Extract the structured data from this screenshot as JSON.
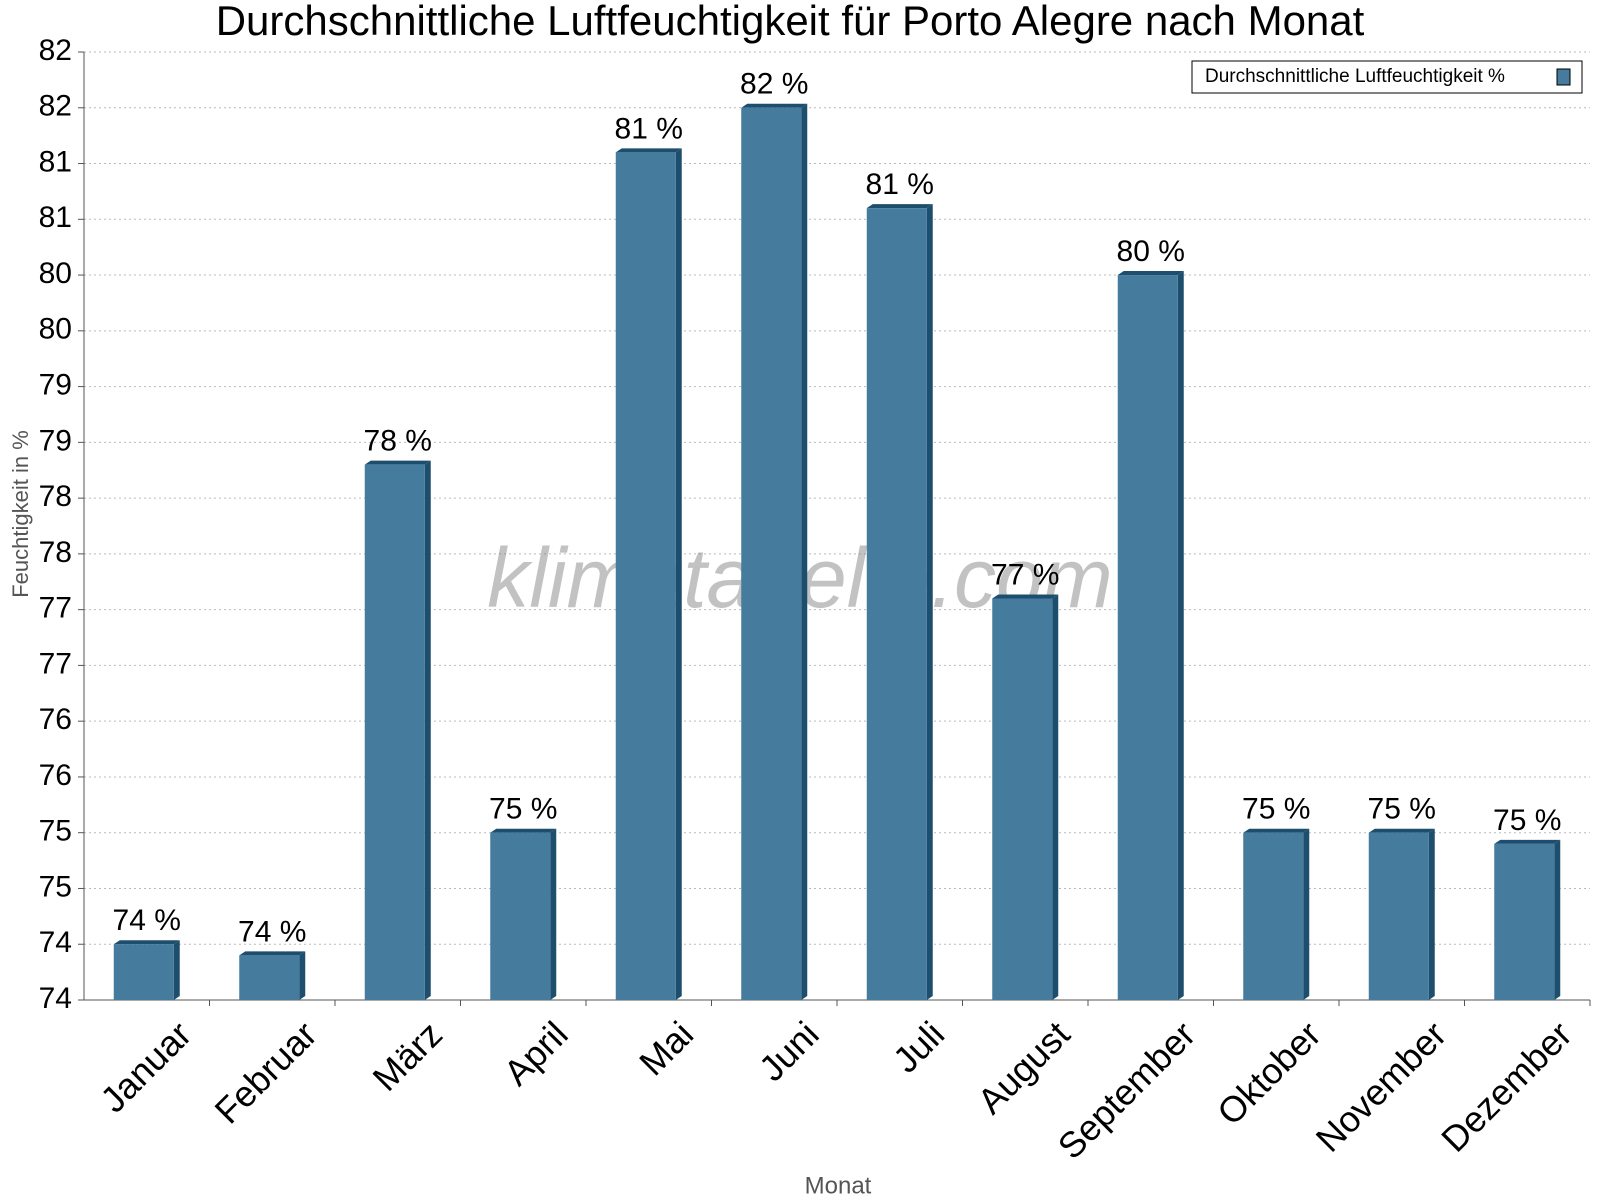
{
  "chart_data": {
    "type": "bar",
    "title": "Durchschnittliche Luftfeuchtigkeit für Porto Alegre nach Monat",
    "x_label": "Monat",
    "y_label": "Feuchtigkeit in %",
    "watermark": "klimatabelle.com",
    "categories": [
      "Januar",
      "Februar",
      "März",
      "April",
      "Mai",
      "Juni",
      "Juli",
      "August",
      "September",
      "Oktober",
      "November",
      "Dezember"
    ],
    "series": [
      {
        "name": "Durchschnittliche Luftfeuchtigkeit %",
        "color": "#457b9d",
        "values": [
          74.0,
          73.9,
          78.3,
          75.0,
          81.1,
          81.5,
          80.6,
          77.1,
          80.0,
          75.0,
          75.0,
          74.9
        ],
        "value_labels": [
          "74 %",
          "74 %",
          "78 %",
          "75 %",
          "81 %",
          "82 %",
          "81 %",
          "77 %",
          "80 %",
          "75 %",
          "75 %",
          "75 %"
        ]
      }
    ],
    "ylim": [
      73.5,
      82.0
    ],
    "yticks": [
      {
        "value": 73.5,
        "label": "74"
      },
      {
        "value": 74.0,
        "label": "74"
      },
      {
        "value": 74.5,
        "label": "75"
      },
      {
        "value": 75.0,
        "label": "75"
      },
      {
        "value": 75.5,
        "label": "76"
      },
      {
        "value": 76.0,
        "label": "76"
      },
      {
        "value": 76.5,
        "label": "77"
      },
      {
        "value": 77.0,
        "label": "77"
      },
      {
        "value": 77.5,
        "label": "78"
      },
      {
        "value": 78.0,
        "label": "78"
      },
      {
        "value": 78.5,
        "label": "79"
      },
      {
        "value": 79.0,
        "label": "79"
      },
      {
        "value": 79.5,
        "label": "80"
      },
      {
        "value": 80.0,
        "label": "80"
      },
      {
        "value": 80.5,
        "label": "81"
      },
      {
        "value": 81.0,
        "label": "81"
      },
      {
        "value": 81.5,
        "label": "82"
      },
      {
        "value": 82.0,
        "label": "82"
      }
    ],
    "grid": true,
    "legend": "top-right"
  }
}
